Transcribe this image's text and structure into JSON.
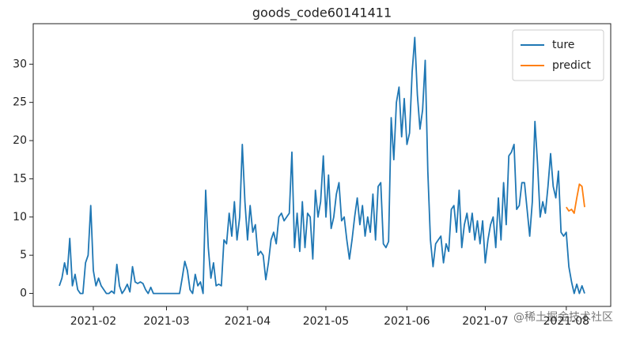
{
  "chart_data": {
    "type": "line",
    "title": "goods_code60141411",
    "xlim": [
      8,
      229
    ],
    "ylim": [
      -1.7,
      35.3
    ],
    "xticks": [
      {
        "value": 31,
        "label": "2021-02"
      },
      {
        "value": 59,
        "label": "2021-03"
      },
      {
        "value": 90,
        "label": "2021-04"
      },
      {
        "value": 120,
        "label": "2021-05"
      },
      {
        "value": 151,
        "label": "2021-06"
      },
      {
        "value": 181,
        "label": "2021-07"
      },
      {
        "value": 212,
        "label": "2021-08"
      }
    ],
    "yticks": [
      0,
      5,
      10,
      15,
      20,
      25,
      30
    ],
    "legend": "upper right",
    "series": [
      {
        "name": "ture",
        "color": "#1f77b4",
        "x": [
          18,
          19,
          20,
          21,
          22,
          23,
          24,
          25,
          26,
          27,
          28,
          29,
          30,
          31,
          32,
          33,
          34,
          35,
          36,
          37,
          38,
          39,
          40,
          41,
          42,
          43,
          44,
          45,
          46,
          47,
          48,
          49,
          50,
          51,
          52,
          53,
          54,
          55,
          56,
          57,
          58,
          59,
          60,
          61,
          62,
          63,
          64,
          65,
          66,
          67,
          68,
          69,
          70,
          71,
          72,
          73,
          74,
          75,
          76,
          77,
          78,
          79,
          80,
          81,
          82,
          83,
          84,
          85,
          86,
          87,
          88,
          89,
          90,
          91,
          92,
          93,
          94,
          95,
          96,
          97,
          98,
          99,
          100,
          101,
          102,
          103,
          104,
          105,
          106,
          107,
          108,
          109,
          110,
          111,
          112,
          113,
          114,
          115,
          116,
          117,
          118,
          119,
          120,
          121,
          122,
          123,
          124,
          125,
          126,
          127,
          128,
          129,
          130,
          131,
          132,
          133,
          134,
          135,
          136,
          137,
          138,
          139,
          140,
          141,
          142,
          143,
          144,
          145,
          146,
          147,
          148,
          149,
          150,
          151,
          152,
          153,
          154,
          155,
          156,
          157,
          158,
          159,
          160,
          161,
          162,
          163,
          164,
          165,
          166,
          167,
          168,
          169,
          170,
          171,
          172,
          173,
          174,
          175,
          176,
          177,
          178,
          179,
          180,
          181,
          182,
          183,
          184,
          185,
          186,
          187,
          188,
          189,
          190,
          191,
          192,
          193,
          194,
          195,
          196,
          197,
          198,
          199,
          200,
          201,
          202,
          203,
          204,
          205,
          206,
          207,
          208,
          209,
          210,
          211,
          212,
          213,
          214,
          215,
          216,
          217,
          218,
          219
        ],
        "values": [
          1,
          2,
          4,
          2.5,
          7.2,
          1,
          2.5,
          0.5,
          0,
          0,
          4,
          5,
          11.5,
          3,
          1,
          2,
          1,
          0.5,
          0,
          0,
          0.3,
          0,
          3.8,
          1,
          0,
          0.5,
          1.2,
          0.2,
          3.5,
          1.5,
          1.3,
          1.5,
          1.3,
          0.5,
          0,
          0.8,
          0,
          0,
          0,
          0,
          0,
          0,
          0,
          0,
          0,
          0,
          0,
          2,
          4.2,
          3,
          0.5,
          0,
          2.5,
          1,
          1.5,
          0,
          13.5,
          6,
          2,
          4,
          1,
          1.2,
          1,
          7,
          6.5,
          10.5,
          7.5,
          12,
          7,
          10,
          19.5,
          12,
          7,
          11.5,
          8,
          9,
          5,
          5.5,
          5,
          1.8,
          4,
          7,
          8,
          6.5,
          10,
          10.5,
          9.5,
          10,
          10.5,
          18.5,
          6,
          10.5,
          5.5,
          12,
          6,
          10.5,
          10,
          4.5,
          13.5,
          10,
          12,
          18,
          10,
          15.5,
          8.5,
          10,
          13,
          14.5,
          9.5,
          10,
          7,
          4.5,
          7,
          10,
          12.5,
          9,
          11.5,
          7.5,
          10,
          8,
          13,
          7,
          14,
          14.5,
          6.5,
          6,
          6.8,
          23,
          17.5,
          25,
          27,
          20.5,
          25.5,
          19.5,
          21,
          29,
          33.5,
          26,
          21.5,
          24,
          30.5,
          16,
          7,
          3.5,
          6.5,
          7,
          7.5,
          4,
          6.5,
          5.5,
          11,
          11.5,
          8,
          13.5,
          6,
          9,
          10.5,
          8,
          10.5,
          7,
          9.5,
          6.5,
          9.5,
          4,
          7,
          9,
          10,
          6,
          12.5,
          7,
          14.5,
          9,
          18,
          18.5,
          19.5,
          11,
          11.5,
          14.5,
          14.5,
          11,
          7.5,
          12,
          22.5,
          17,
          10,
          12,
          10.5,
          14,
          18.3,
          14,
          12.5,
          16,
          8,
          7.5,
          8,
          3.5,
          1.5,
          0,
          1.2,
          0,
          1,
          0
        ]
      },
      {
        "name": "predict",
        "color": "#ff7f0e",
        "x": [
          212,
          213,
          214,
          215,
          216,
          217,
          218,
          219
        ],
        "values": [
          11.3,
          10.8,
          11,
          10.5,
          12.5,
          14.3,
          14,
          11.3
        ]
      }
    ],
    "watermark": "@稀土掘金技术社区"
  }
}
